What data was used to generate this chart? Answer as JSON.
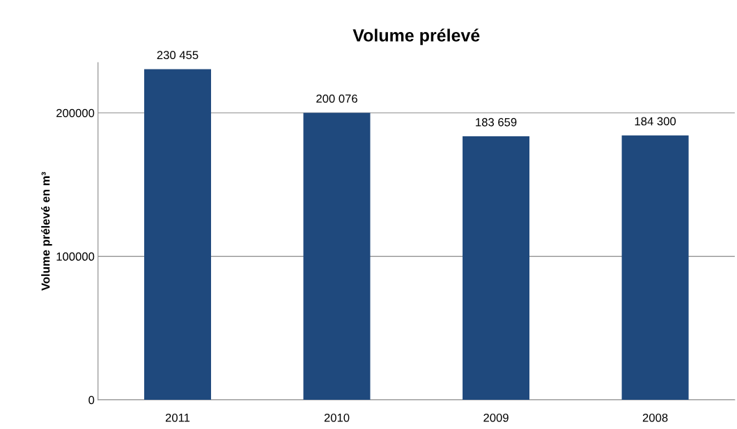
{
  "chart_data": {
    "type": "bar",
    "title": "Volume prélevé",
    "ylabel": "Volume prélevé en m³",
    "categories": [
      "2011",
      "2010",
      "2009",
      "2008"
    ],
    "values": [
      230455,
      200076,
      183659,
      184300
    ],
    "value_labels": [
      "230 455",
      "200 076",
      "183 659",
      "184 300"
    ],
    "color": "#1f497d",
    "ylim": [
      0,
      235000
    ],
    "yticks": [
      0,
      100000,
      200000
    ],
    "grid": "y",
    "legend": false
  }
}
